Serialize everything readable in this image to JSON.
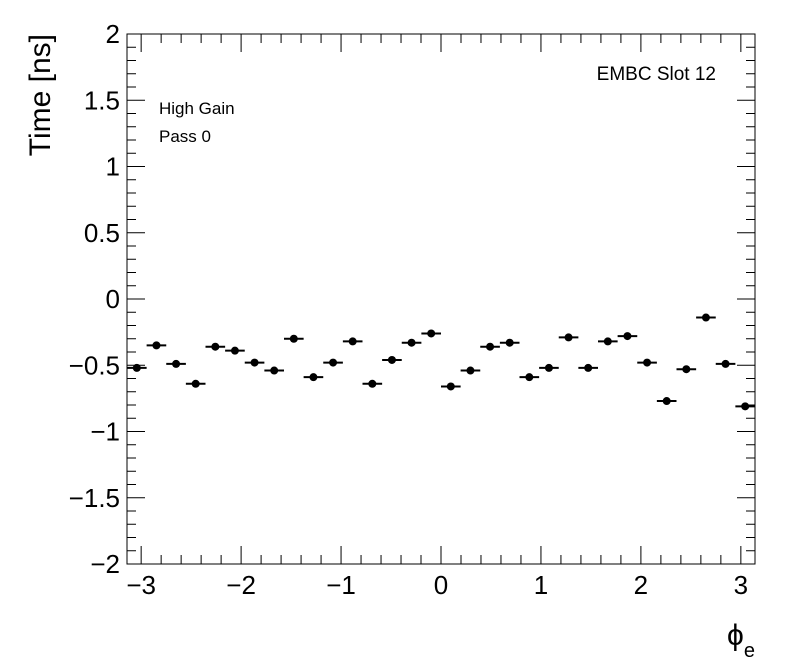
{
  "chart_data": {
    "type": "scatter",
    "ylabel": "Time [ns]",
    "xlabel_main": "ϕ",
    "xlabel_sub": "e",
    "xlim": [
      -3.1416,
      3.1416
    ],
    "ylim": [
      -2,
      2
    ],
    "x_tick_labels": [
      "−3",
      "−2",
      "−1",
      "0",
      "1",
      "2",
      "3"
    ],
    "y_tick_labels": [
      "2",
      "1.5",
      "1",
      "0.5",
      "0",
      "−0.5",
      "−1",
      "−1.5",
      "−2"
    ],
    "annotations": {
      "top_right": "EMBC Slot 12",
      "gain": "High Gain",
      "pass": "Pass 0"
    },
    "bin_half_width": 0.0982,
    "points": [
      {
        "x": -3.0434,
        "y": -0.52
      },
      {
        "x": -2.8471,
        "y": -0.35
      },
      {
        "x": -2.6507,
        "y": -0.49
      },
      {
        "x": -2.4544,
        "y": -0.64
      },
      {
        "x": -2.258,
        "y": -0.36
      },
      {
        "x": -2.0617,
        "y": -0.39
      },
      {
        "x": -1.8653,
        "y": -0.48
      },
      {
        "x": -1.669,
        "y": -0.54
      },
      {
        "x": -1.4726,
        "y": -0.3
      },
      {
        "x": -1.2763,
        "y": -0.59
      },
      {
        "x": -1.0799,
        "y": -0.48
      },
      {
        "x": -0.8836,
        "y": -0.32
      },
      {
        "x": -0.6872,
        "y": -0.64
      },
      {
        "x": -0.4909,
        "y": -0.46
      },
      {
        "x": -0.2945,
        "y": -0.33
      },
      {
        "x": -0.0982,
        "y": -0.26
      },
      {
        "x": 0.0982,
        "y": -0.66
      },
      {
        "x": 0.2945,
        "y": -0.54
      },
      {
        "x": 0.4909,
        "y": -0.36
      },
      {
        "x": 0.6872,
        "y": -0.33
      },
      {
        "x": 0.8836,
        "y": -0.59
      },
      {
        "x": 1.0799,
        "y": -0.52
      },
      {
        "x": 1.2763,
        "y": -0.29
      },
      {
        "x": 1.4726,
        "y": -0.52
      },
      {
        "x": 1.669,
        "y": -0.32
      },
      {
        "x": 1.8653,
        "y": -0.28
      },
      {
        "x": 2.0617,
        "y": -0.48
      },
      {
        "x": 2.258,
        "y": -0.77
      },
      {
        "x": 2.4544,
        "y": -0.53
      },
      {
        "x": 2.6507,
        "y": -0.14
      },
      {
        "x": 2.8471,
        "y": -0.49
      },
      {
        "x": 3.0434,
        "y": -0.81
      }
    ]
  }
}
